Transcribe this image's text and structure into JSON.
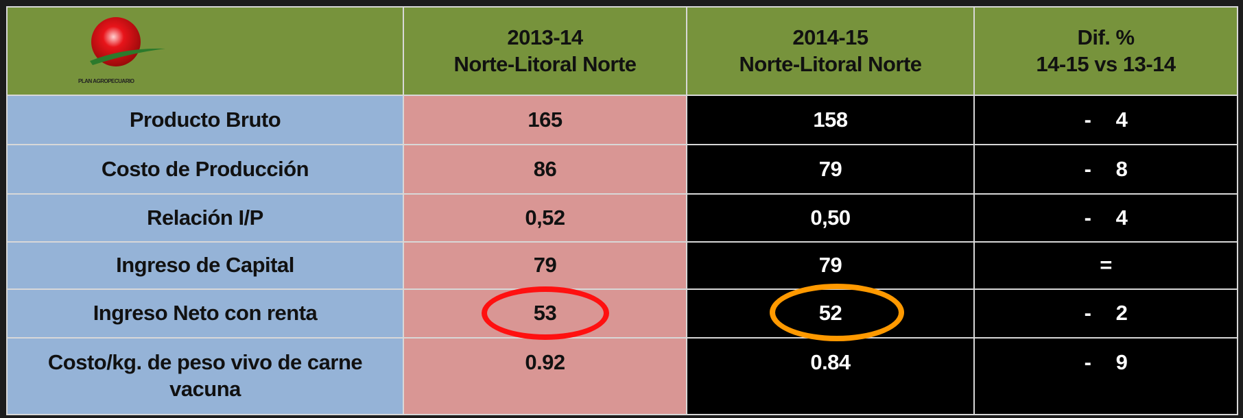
{
  "logo": {
    "text": "PLAN AGROPECUARIO"
  },
  "table": {
    "header": [
      [
        "2013-14",
        "Norte-Litoral Norte"
      ],
      [
        "2014-15",
        "Norte-Litoral Norte"
      ],
      [
        "Dif. %",
        "14-15 vs 13-14"
      ]
    ],
    "rows": [
      [
        "Producto Bruto",
        "165",
        "158",
        "- 4"
      ],
      [
        "Costo de Producción",
        "86",
        "79",
        "- 8"
      ],
      [
        "Relación I/P",
        "0,52",
        "0,50",
        "- 4"
      ],
      [
        "Ingreso de Capital",
        "79",
        "79",
        "="
      ],
      [
        "Ingreso Neto  con renta",
        "53",
        "52",
        "- 2"
      ],
      [
        "Costo/kg. de peso vivo de carne vacuna",
        "0.92",
        "0.84",
        "- 9"
      ]
    ]
  }
}
